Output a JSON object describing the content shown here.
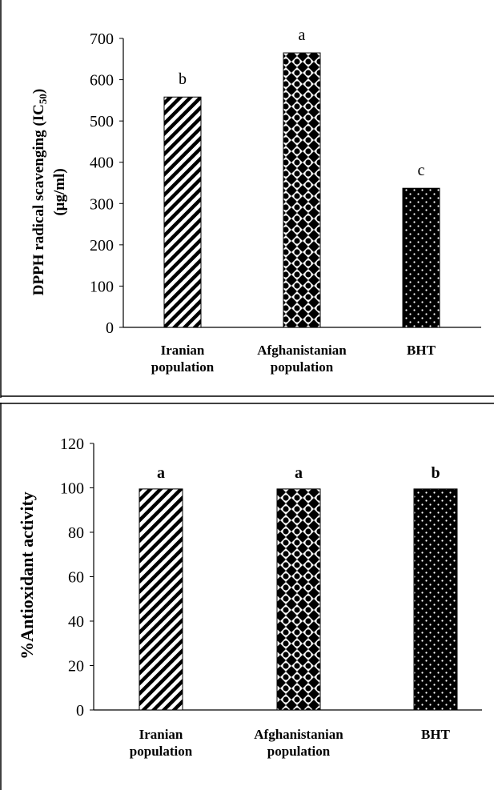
{
  "chart_data": [
    {
      "type": "bar",
      "categories": [
        "Iranian population",
        "Afghanistanian population",
        "BHT"
      ],
      "category_lines": [
        [
          "Iranian",
          "population"
        ],
        [
          "Afghanistanian",
          "population"
        ],
        [
          "BHT"
        ]
      ],
      "values": [
        558,
        665,
        337
      ],
      "significance_letters": [
        "b",
        "a",
        "c"
      ],
      "patterns": [
        "diagonal-stripes",
        "checkerboard-diamonds",
        "dotted-black"
      ],
      "title": "",
      "xlabel": "",
      "ylabel_line1": "DPPH  radical scavenging (IC",
      "ylabel_sub": "50",
      "ylabel_close": ")",
      "ylabel_line2": "(μg/ml)",
      "ylim": [
        0,
        700
      ],
      "yticks": [
        0,
        100,
        200,
        300,
        400,
        500,
        600,
        700
      ],
      "grid": false,
      "legend": "none"
    },
    {
      "type": "bar",
      "categories": [
        "Iranian population",
        "Afghanistanian population",
        "BHT"
      ],
      "category_lines": [
        [
          "Iranian",
          "population"
        ],
        [
          "Afghanistanian",
          "population"
        ],
        [
          "BHT"
        ]
      ],
      "values": [
        99.5,
        99.5,
        99.5
      ],
      "significance_letters": [
        "a",
        "a",
        "b"
      ],
      "patterns": [
        "diagonal-stripes",
        "checkerboard-diamonds",
        "dotted-black"
      ],
      "title": "",
      "xlabel": "",
      "ylabel": "%Antioxidant activity",
      "ylim": [
        0,
        120
      ],
      "yticks": [
        0,
        20,
        40,
        60,
        80,
        100,
        120
      ],
      "grid": false,
      "legend": "none"
    }
  ]
}
